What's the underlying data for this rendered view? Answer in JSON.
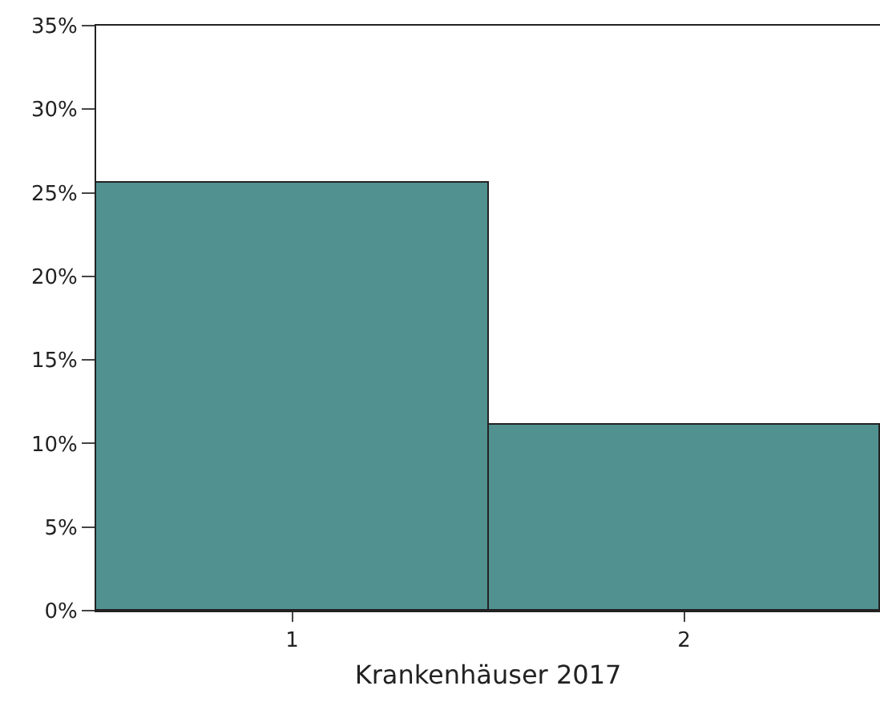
{
  "chart_data": {
    "type": "bar",
    "xlabel": "Krankenhäuser 2017",
    "categories": [
      "1",
      "2"
    ],
    "series": [
      {
        "color": "#519190",
        "values": [
          25.6,
          11.1
        ]
      }
    ],
    "ylim": [
      0,
      35
    ],
    "yticks": [
      {
        "value": 0,
        "label": "0%"
      },
      {
        "value": 5,
        "label": "5%"
      },
      {
        "value": 10,
        "label": "10%"
      },
      {
        "value": 15,
        "label": "15%"
      },
      {
        "value": 20,
        "label": "20%"
      },
      {
        "value": 25,
        "label": "25%"
      },
      {
        "value": 30,
        "label": "30%"
      },
      {
        "value": 35,
        "label": "35%"
      }
    ],
    "grid": false
  }
}
